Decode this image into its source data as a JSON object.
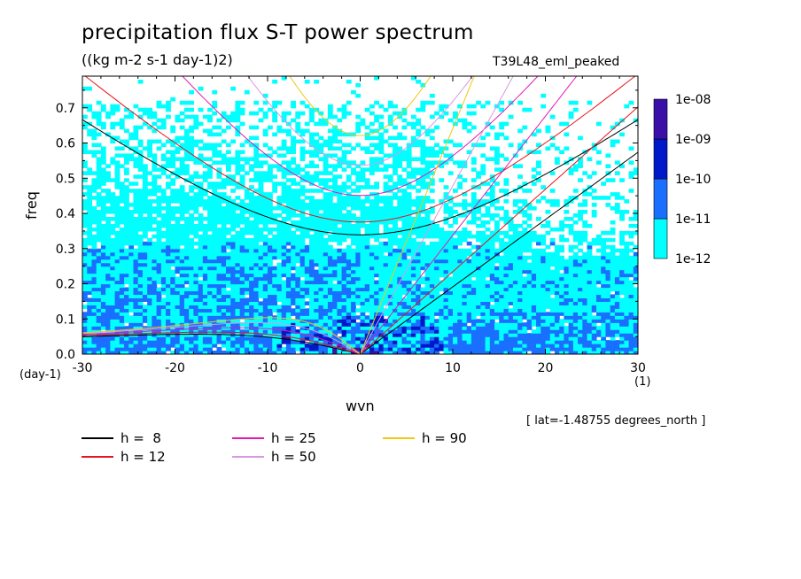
{
  "chart_data": {
    "type": "heatmap",
    "title": "precipitation flux S-T power spectrum",
    "subtitle": "((kg m-2 s-1 day-1)2)",
    "run_label": "T39L48_eml_peaked",
    "xlabel": "wvn",
    "ylabel": "freq",
    "x_unit": "(1)",
    "y_unit": "(day-1)",
    "xlim": [
      -30,
      30
    ],
    "ylim": [
      0,
      0.79
    ],
    "x_ticks": [
      -30,
      -20,
      -10,
      0,
      10,
      20,
      30
    ],
    "x_tick_labels": [
      "-30",
      "-20",
      "-10",
      "0",
      "10",
      "20",
      "30"
    ],
    "y_ticks": [
      0,
      0.1,
      0.2,
      0.3,
      0.4,
      0.5,
      0.6,
      0.7
    ],
    "y_tick_labels": [
      "0.0",
      "0.1",
      "0.2",
      "0.3",
      "0.4",
      "0.5",
      "0.6",
      "0.7"
    ],
    "footnote": "[ lat=-1.48755 degrees_north ]",
    "colorbar": {
      "levels": [
        "1e-12",
        "1e-11",
        "1e-10",
        "1e-09",
        "1e-08"
      ],
      "colors": [
        "#00ffff",
        "#1a6fff",
        "#0019c8",
        "#3a10a8"
      ]
    },
    "shaded_regions_summary": {
      "1e-12 to 1e-11": "broad background mostly below freq 0.45, patchy up to 0.72",
      "1e-11 to 1e-10": "patches concentrated below freq 0.3, densest near freq 0.05-0.15 for negative wvn",
      "1e-10 to 1e-09": "small patches near wvn -5..5 at freq 0.0-0.1"
    },
    "dispersion_curves": [
      {
        "h": 8,
        "color": "#000000"
      },
      {
        "h": 12,
        "color": "#e8141e"
      },
      {
        "h": 25,
        "color": "#e01ab4"
      },
      {
        "h": 50,
        "color": "#dc96e6"
      },
      {
        "h": 90,
        "color": "#f0c814"
      }
    ],
    "legend": [
      {
        "label": "h =  8",
        "color": "#000000"
      },
      {
        "label": "h = 12",
        "color": "#e8141e"
      },
      {
        "label": "h = 25",
        "color": "#e01ab4"
      },
      {
        "label": "h = 50",
        "color": "#dc96e6"
      },
      {
        "label": "h = 90",
        "color": "#f0c814"
      }
    ]
  }
}
